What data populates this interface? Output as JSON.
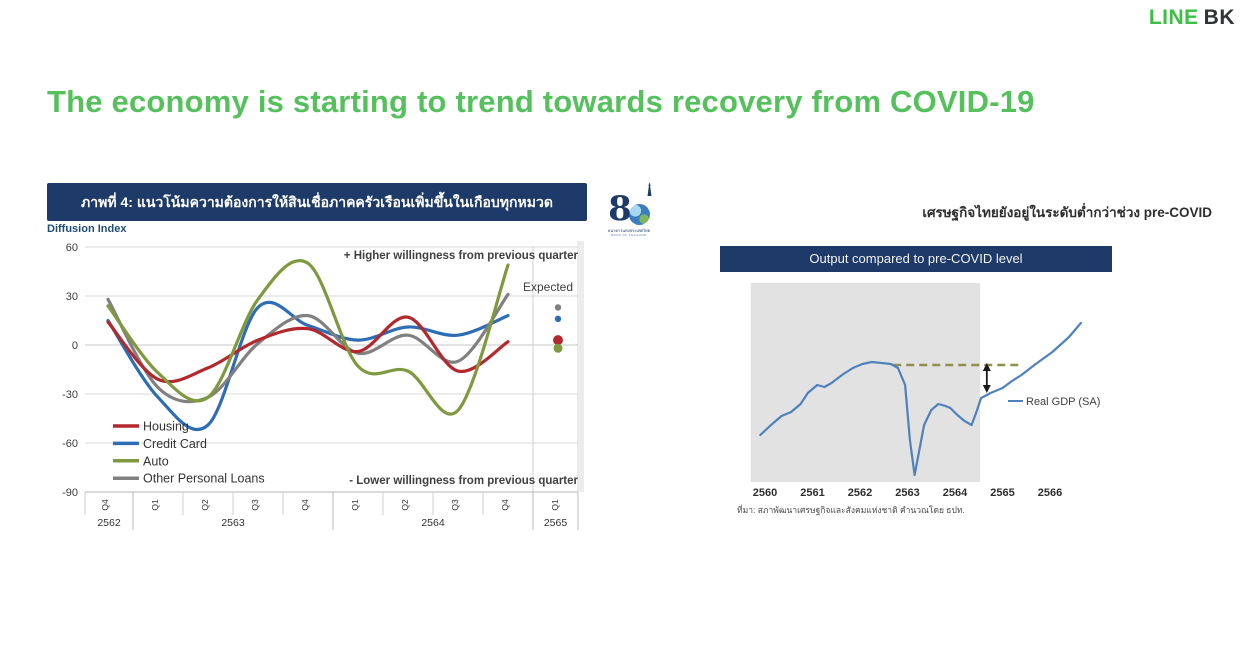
{
  "header": {
    "brand_line": "LINE",
    "brand_bk": "BK"
  },
  "heading": "The economy is starting to trend towards recovery from COVID-19",
  "bot_logo": {
    "digit": "8",
    "name_thai": "ธนาคารแห่งประเทศไทย",
    "name_eng": "BANK OF THAILAND"
  },
  "right_panel": {
    "heading": "เศรษฐกิจไทยยังอยู่ในระดับต่ำกว่าช่วง pre-COVID",
    "source": "ที่มา: สภาพัฒนาเศรษฐกิจและสังคมแห่งชาติ คำนวณโดย ธปท."
  },
  "chart_data": [
    {
      "type": "line",
      "title": "ภาพที่ 4: แนวโน้มความต้องการให้สินเชื่อภาคครัวเรือนเพิ่มขึ้นในเกือบทุกหมวด",
      "ylabel": "Diffusion Index",
      "ylim": [
        -90,
        60
      ],
      "yticks": [
        60,
        30,
        0,
        -30,
        -60,
        -90
      ],
      "grid": true,
      "legend_position": "inside-bottom-left",
      "categories": [
        "Q4",
        "Q1",
        "Q2",
        "Q3",
        "Q4",
        "Q1",
        "Q2",
        "Q3",
        "Q4",
        "Q1"
      ],
      "year_groups": [
        {
          "label": "2562",
          "quarters": 1
        },
        {
          "label": "2563",
          "quarters": 4
        },
        {
          "label": "2564",
          "quarters": 4
        },
        {
          "label": "2565",
          "quarters": 1
        }
      ],
      "series": [
        {
          "name": "Housing",
          "color": "#b3282d",
          "values": [
            14,
            -21,
            -14,
            3,
            10,
            -4,
            17,
            -16,
            2
          ],
          "expected": 3
        },
        {
          "name": "Credit Card",
          "color": "#2e6db4",
          "values": [
            15,
            -32,
            -49,
            23,
            12,
            3,
            11,
            6,
            18
          ],
          "expected": 16
        },
        {
          "name": "Auto",
          "color": "#7f993f",
          "values": [
            24,
            -17,
            -32,
            28,
            50,
            -13,
            -16,
            -40,
            49
          ],
          "expected": -2
        },
        {
          "name": "Other Personal Loans",
          "color": "#808080",
          "values": [
            28,
            -26,
            -32,
            1,
            18,
            -5,
            6,
            -10,
            31
          ],
          "expected": 23
        }
      ],
      "annotations": {
        "higher": "+ Higher willingness from previous quarter",
        "lower": "- Lower willingness from previous quarter",
        "expected": "Expected"
      }
    },
    {
      "type": "line",
      "title": "Output compared to pre-COVID level",
      "xticks": [
        2560,
        2561,
        2562,
        2563,
        2564,
        2565,
        2566
      ],
      "pre_covid_level": 100,
      "shaded_region_x": [
        2559.7,
        2564.53
      ],
      "dashed_line": {
        "level": 100,
        "x_start": 2562.7,
        "x_end": 2565.42
      },
      "gap_arrow_x": 2564.67,
      "series": [
        {
          "name": "Real GDP (SA)",
          "color": "#4f81bd",
          "x": [
            2559.9,
            2560.15,
            2560.35,
            2560.55,
            2560.75,
            2560.9,
            2561.1,
            2561.25,
            2561.4,
            2561.65,
            2561.85,
            2562.05,
            2562.25,
            2562.45,
            2562.65,
            2562.8,
            2562.95,
            2563.05,
            2563.15,
            2563.35,
            2563.5,
            2563.65,
            2563.8,
            2563.9,
            2564.05,
            2564.2,
            2564.35,
            2564.45,
            2564.55,
            2564.75,
            2564.9,
            2565.0,
            2565.2,
            2565.4,
            2565.7,
            2566.05,
            2566.4,
            2566.65
          ],
          "y": [
            86,
            88.2,
            89.8,
            90.6,
            92.2,
            94.4,
            96,
            95.6,
            96.4,
            98.2,
            99.4,
            100.2,
            100.6,
            100.4,
            100.2,
            99.4,
            96,
            85,
            78,
            88,
            91,
            92.2,
            91.8,
            91.4,
            90,
            88.8,
            88,
            90.6,
            93.4,
            94.4,
            95,
            95.4,
            96.8,
            98,
            100.2,
            102.6,
            105.6,
            108.4
          ]
        }
      ]
    }
  ]
}
